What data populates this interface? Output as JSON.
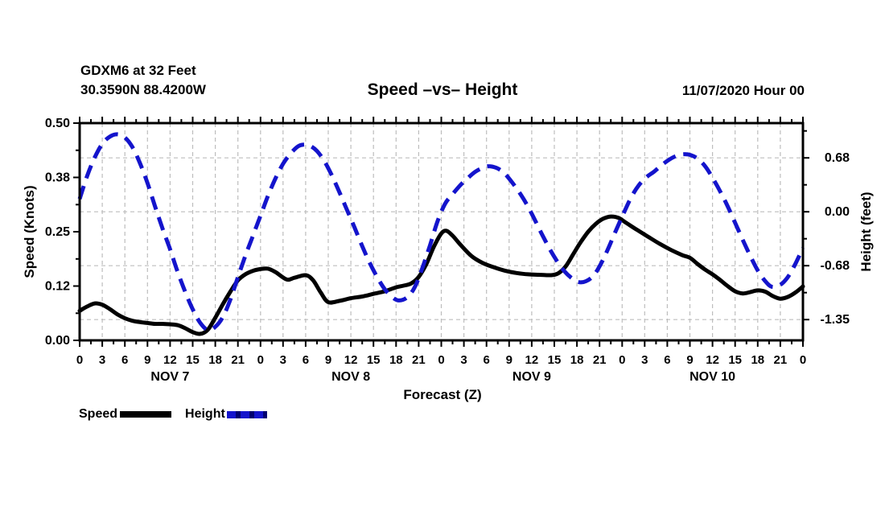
{
  "header": {
    "station_line1": "GDXM6 at 32 Feet",
    "station_line2": "30.3590N 88.4200W",
    "title": "Speed –vs– Height",
    "datetime": "11/07/2020 Hour 00"
  },
  "axes": {
    "left_label": "Speed (Knots)",
    "right_label": "Height (feet)",
    "x_label": "Forecast (Z)"
  },
  "legend": [
    {
      "label": "Speed",
      "color": "#000000",
      "style": "solid"
    },
    {
      "label": "Height",
      "color": "#1414cc",
      "style": "dashed"
    }
  ],
  "chart_data": {
    "type": "line",
    "title": "Speed –vs– Height",
    "x_axis": {
      "label": "Forecast (Z)",
      "range_hours": [
        0,
        96
      ],
      "major_tick_step_hours": 3,
      "minor_tick_step_hours": 1.5,
      "tick_labels": [
        "0",
        "3",
        "6",
        "9",
        "12",
        "15",
        "18",
        "21",
        "0",
        "3",
        "6",
        "9",
        "12",
        "15",
        "18",
        "21",
        "0",
        "3",
        "6",
        "9",
        "12",
        "15",
        "18",
        "21",
        "0",
        "3",
        "6",
        "9",
        "12",
        "15",
        "18",
        "21",
        "0"
      ],
      "day_labels": [
        {
          "hour": 12,
          "label": "NOV 7"
        },
        {
          "hour": 36,
          "label": "NOV 8"
        },
        {
          "hour": 60,
          "label": "NOV 9"
        },
        {
          "hour": 84,
          "label": "NOV 10"
        }
      ]
    },
    "y_left": {
      "label": "Speed (Knots)",
      "range": [
        0,
        0.5
      ],
      "tick_values": [
        0,
        0.125,
        0.25,
        0.375,
        0.5
      ],
      "tick_labels": [
        "0.00",
        "0.12",
        "0.25",
        "0.38",
        "0.50"
      ],
      "minor_tick_values": [
        0.0625,
        0.1875,
        0.3125,
        0.4375
      ]
    },
    "y_right": {
      "label": "Height (feet)",
      "range": [
        -1.61,
        1.11
      ],
      "tick_values": [
        -1.35,
        -0.675,
        0,
        0.675
      ],
      "tick_labels": [
        "-1.35",
        "-0.68",
        "0.00",
        "0.68"
      ],
      "minor_tick_values": [
        -1.0125,
        -0.3375,
        0.3375,
        1.0125
      ]
    },
    "grid": {
      "color": "#bdbdbd",
      "vertical_step_hours": 3,
      "horizontal_at_right_tick_values": true
    },
    "legend_position": "bottom-left",
    "series": [
      {
        "name": "Speed",
        "axis": "left",
        "color": "#000000",
        "dashed": false,
        "points": [
          [
            0,
            0.068
          ],
          [
            1,
            0.078
          ],
          [
            2,
            0.085
          ],
          [
            3,
            0.082
          ],
          [
            4,
            0.072
          ],
          [
            5,
            0.06
          ],
          [
            6,
            0.051
          ],
          [
            7,
            0.045
          ],
          [
            8,
            0.042
          ],
          [
            9,
            0.04
          ],
          [
            10,
            0.038
          ],
          [
            11,
            0.038
          ],
          [
            12,
            0.037
          ],
          [
            13,
            0.035
          ],
          [
            14,
            0.028
          ],
          [
            15,
            0.019
          ],
          [
            16,
            0.015
          ],
          [
            17,
            0.024
          ],
          [
            18,
            0.052
          ],
          [
            19,
            0.083
          ],
          [
            20,
            0.112
          ],
          [
            21,
            0.138
          ],
          [
            22,
            0.152
          ],
          [
            23,
            0.16
          ],
          [
            24,
            0.164
          ],
          [
            25,
            0.165
          ],
          [
            26,
            0.157
          ],
          [
            27.5,
            0.14
          ],
          [
            28.5,
            0.144
          ],
          [
            30,
            0.15
          ],
          [
            31,
            0.138
          ],
          [
            32,
            0.11
          ],
          [
            33,
            0.088
          ],
          [
            34.5,
            0.091
          ],
          [
            36,
            0.097
          ],
          [
            37.5,
            0.101
          ],
          [
            39,
            0.107
          ],
          [
            40.5,
            0.113
          ],
          [
            42,
            0.122
          ],
          [
            43,
            0.126
          ],
          [
            44,
            0.131
          ],
          [
            45,
            0.146
          ],
          [
            46,
            0.175
          ],
          [
            47,
            0.215
          ],
          [
            48,
            0.246
          ],
          [
            48.7,
            0.252
          ],
          [
            49.5,
            0.241
          ],
          [
            50.5,
            0.221
          ],
          [
            52,
            0.194
          ],
          [
            53.5,
            0.178
          ],
          [
            55,
            0.168
          ],
          [
            56.5,
            0.16
          ],
          [
            58,
            0.155
          ],
          [
            59.5,
            0.152
          ],
          [
            61,
            0.151
          ],
          [
            62.5,
            0.15
          ],
          [
            63.5,
            0.154
          ],
          [
            64.5,
            0.17
          ],
          [
            65.5,
            0.198
          ],
          [
            66.5,
            0.226
          ],
          [
            67.5,
            0.25
          ],
          [
            68.5,
            0.268
          ],
          [
            69.5,
            0.28
          ],
          [
            70.5,
            0.285
          ],
          [
            71.5,
            0.282
          ],
          [
            72.5,
            0.271
          ],
          [
            74,
            0.254
          ],
          [
            75.5,
            0.238
          ],
          [
            77,
            0.222
          ],
          [
            78.5,
            0.208
          ],
          [
            80,
            0.196
          ],
          [
            81,
            0.19
          ],
          [
            82,
            0.176
          ],
          [
            83,
            0.163
          ],
          [
            84,
            0.152
          ],
          [
            85,
            0.139
          ],
          [
            86,
            0.125
          ],
          [
            87,
            0.113
          ],
          [
            88,
            0.108
          ],
          [
            89,
            0.111
          ],
          [
            90,
            0.115
          ],
          [
            91,
            0.112
          ],
          [
            92,
            0.102
          ],
          [
            93,
            0.096
          ],
          [
            94,
            0.1
          ],
          [
            95,
            0.11
          ],
          [
            96,
            0.124
          ]
        ]
      },
      {
        "name": "Height",
        "axis": "right",
        "color": "#1414cc",
        "dashed": true,
        "points": [
          [
            0,
            0.16
          ],
          [
            1,
            0.45
          ],
          [
            2,
            0.68
          ],
          [
            3,
            0.85
          ],
          [
            4,
            0.94
          ],
          [
            5,
            0.97
          ],
          [
            6,
            0.93
          ],
          [
            7,
            0.81
          ],
          [
            8,
            0.61
          ],
          [
            9,
            0.36
          ],
          [
            10,
            0.07
          ],
          [
            11,
            -0.21
          ],
          [
            12,
            -0.47
          ],
          [
            13,
            -0.75
          ],
          [
            14,
            -1.0
          ],
          [
            15,
            -1.22
          ],
          [
            16,
            -1.39
          ],
          [
            17,
            -1.48
          ],
          [
            18,
            -1.44
          ],
          [
            19,
            -1.32
          ],
          [
            20,
            -1.1
          ],
          [
            21,
            -0.82
          ],
          [
            22,
            -0.55
          ],
          [
            23,
            -0.3
          ],
          [
            24,
            -0.05
          ],
          [
            25,
            0.2
          ],
          [
            26,
            0.42
          ],
          [
            27,
            0.6
          ],
          [
            28,
            0.73
          ],
          [
            29,
            0.82
          ],
          [
            29.7,
            0.84
          ],
          [
            30.5,
            0.83
          ],
          [
            31.5,
            0.76
          ],
          [
            32.5,
            0.63
          ],
          [
            33.5,
            0.45
          ],
          [
            34.5,
            0.24
          ],
          [
            35.5,
            0.02
          ],
          [
            36.5,
            -0.2
          ],
          [
            37.5,
            -0.43
          ],
          [
            38.5,
            -0.64
          ],
          [
            39.5,
            -0.82
          ],
          [
            40.5,
            -0.97
          ],
          [
            41.5,
            -1.07
          ],
          [
            42.4,
            -1.11
          ],
          [
            43.5,
            -1.07
          ],
          [
            44.5,
            -0.94
          ],
          [
            45.5,
            -0.7
          ],
          [
            46.5,
            -0.42
          ],
          [
            47.5,
            -0.12
          ],
          [
            48.5,
            0.1
          ],
          [
            49.5,
            0.22
          ],
          [
            50.5,
            0.33
          ],
          [
            51.5,
            0.42
          ],
          [
            52.5,
            0.5
          ],
          [
            53.5,
            0.55
          ],
          [
            54.3,
            0.57
          ],
          [
            55.3,
            0.55
          ],
          [
            56.3,
            0.49
          ],
          [
            57.3,
            0.38
          ],
          [
            58.3,
            0.25
          ],
          [
            59.3,
            0.1
          ],
          [
            60.3,
            -0.08
          ],
          [
            61.3,
            -0.27
          ],
          [
            62.3,
            -0.45
          ],
          [
            63.3,
            -0.61
          ],
          [
            64.3,
            -0.74
          ],
          [
            65.3,
            -0.83
          ],
          [
            66.2,
            -0.88
          ],
          [
            67.2,
            -0.87
          ],
          [
            68.2,
            -0.8
          ],
          [
            69.2,
            -0.65
          ],
          [
            70.2,
            -0.45
          ],
          [
            71.2,
            -0.23
          ],
          [
            72.2,
            -0.02
          ],
          [
            73.2,
            0.18
          ],
          [
            74.2,
            0.33
          ],
          [
            75.2,
            0.43
          ],
          [
            76.2,
            0.5
          ],
          [
            77.2,
            0.58
          ],
          [
            78.2,
            0.65
          ],
          [
            79.2,
            0.7
          ],
          [
            80.1,
            0.72
          ],
          [
            81.1,
            0.71
          ],
          [
            82.1,
            0.66
          ],
          [
            83.1,
            0.56
          ],
          [
            84.1,
            0.41
          ],
          [
            85.1,
            0.24
          ],
          [
            86.1,
            0.05
          ],
          [
            87.1,
            -0.16
          ],
          [
            88.1,
            -0.37
          ],
          [
            89.1,
            -0.57
          ],
          [
            90.1,
            -0.75
          ],
          [
            91.1,
            -0.88
          ],
          [
            91.9,
            -0.94
          ],
          [
            92.9,
            -0.92
          ],
          [
            93.9,
            -0.83
          ],
          [
            94.9,
            -0.67
          ],
          [
            96,
            -0.45
          ]
        ]
      }
    ]
  }
}
